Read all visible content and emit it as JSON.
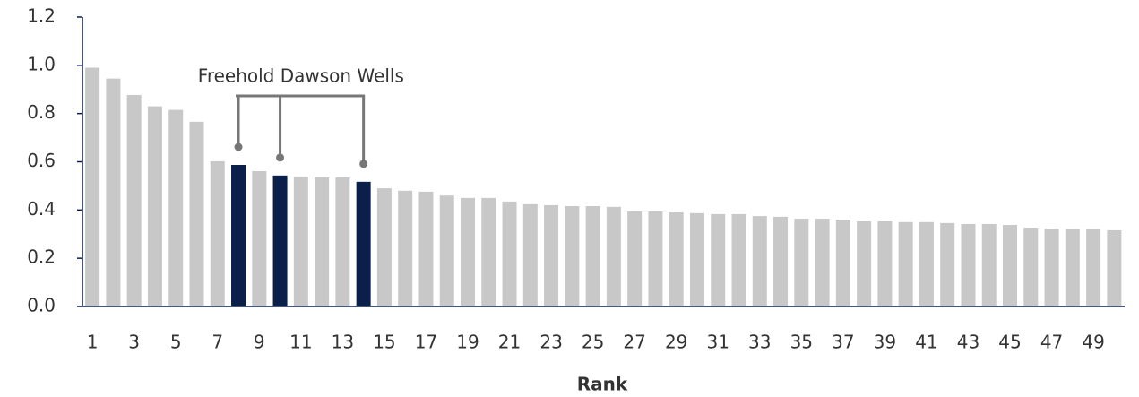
{
  "chart_data": {
    "type": "bar",
    "x_label": "Rank",
    "annotation": "Freehold Dawson Wells",
    "categories": [
      "1",
      null,
      "3",
      null,
      "5",
      null,
      "7",
      null,
      "9",
      null,
      "11",
      null,
      "13",
      null,
      "15",
      null,
      "17",
      null,
      "19",
      null,
      "21",
      null,
      "23",
      null,
      "25",
      null,
      "27",
      null,
      "29",
      null,
      "31",
      null,
      "33",
      null,
      "35",
      null,
      "37",
      null,
      "39",
      null,
      "41",
      null,
      "43",
      null,
      "45",
      null,
      "47",
      null,
      "49",
      null
    ],
    "values": [
      0.99,
      0.945,
      0.877,
      0.83,
      0.815,
      0.766,
      0.602,
      0.587,
      0.561,
      0.543,
      0.539,
      0.535,
      0.535,
      0.517,
      0.49,
      0.48,
      0.476,
      0.46,
      0.45,
      0.45,
      0.435,
      0.424,
      0.42,
      0.416,
      0.416,
      0.413,
      0.394,
      0.394,
      0.39,
      0.387,
      0.383,
      0.383,
      0.375,
      0.372,
      0.364,
      0.364,
      0.36,
      0.353,
      0.353,
      0.35,
      0.35,
      0.346,
      0.342,
      0.342,
      0.338,
      0.327,
      0.323,
      0.32,
      0.32,
      0.316
    ],
    "color": "#c8c8c8",
    "colors": [
      "#c8c8c8",
      "#c8c8c8",
      "#c8c8c8",
      "#c8c8c8",
      "#c8c8c8",
      "#c8c8c8",
      "#c8c8c8",
      "#0b1f4b",
      "#c8c8c8",
      "#0b1f4b",
      "#c8c8c8",
      "#c8c8c8",
      "#c8c8c8",
      "#0b1f4b",
      "#c8c8c8",
      "#c8c8c8",
      "#c8c8c8",
      "#c8c8c8",
      "#c8c8c8",
      "#c8c8c8",
      "#c8c8c8",
      "#c8c8c8",
      "#c8c8c8",
      "#c8c8c8",
      "#c8c8c8",
      "#c8c8c8",
      "#c8c8c8",
      "#c8c8c8",
      "#c8c8c8",
      "#c8c8c8",
      "#c8c8c8",
      "#c8c8c8",
      "#c8c8c8",
      "#c8c8c8",
      "#c8c8c8",
      "#c8c8c8",
      "#c8c8c8",
      "#c8c8c8",
      "#c8c8c8",
      "#c8c8c8",
      "#c8c8c8",
      "#c8c8c8",
      "#c8c8c8",
      "#c8c8c8",
      "#c8c8c8",
      "#c8c8c8",
      "#c8c8c8",
      "#c8c8c8",
      "#c8c8c8",
      "#c8c8c8"
    ],
    "ylim": [
      0,
      1.2
    ],
    "yticks": [
      {
        "value": 0,
        "label": "0.0"
      },
      {
        "value": 0.2,
        "label": "0.2"
      },
      {
        "value": 0.4,
        "label": "0.4"
      },
      {
        "value": 0.6,
        "label": "0.6"
      },
      {
        "value": 0.8,
        "label": "0.8"
      },
      {
        "value": 1,
        "label": "1.0"
      },
      {
        "value": 1.2,
        "label": "1.2"
      }
    ],
    "grid": false
  }
}
